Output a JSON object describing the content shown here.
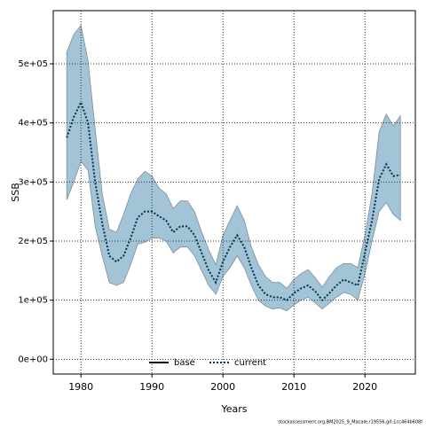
{
  "chart_data": {
    "type": "line",
    "x_label": "Years",
    "y_label": "SSB",
    "footer": "stockassessment.org,BM2025_9_Macale,r19556,git:1cc464b608f",
    "x": [
      1978,
      1979,
      1980,
      1981,
      1982,
      1983,
      1984,
      1985,
      1986,
      1987,
      1988,
      1989,
      1990,
      1991,
      1992,
      1993,
      1994,
      1995,
      1996,
      1997,
      1998,
      1999,
      2000,
      2001,
      2002,
      2003,
      2004,
      2005,
      2006,
      2007,
      2008,
      2009,
      2010,
      2011,
      2012,
      2013,
      2014,
      2015,
      2016,
      2017,
      2018,
      2019,
      2020,
      2021,
      2022,
      2023,
      2024,
      2025
    ],
    "band": {
      "color": "#a3c3d6",
      "lower": [
        270000,
        300000,
        335000,
        320000,
        225000,
        175000,
        130000,
        125000,
        130000,
        160000,
        195000,
        198000,
        205000,
        205000,
        200000,
        180000,
        190000,
        190000,
        175000,
        150000,
        125000,
        110000,
        140000,
        155000,
        175000,
        155000,
        125000,
        100000,
        90000,
        85000,
        87000,
        82000,
        92000,
        100000,
        105000,
        95000,
        85000,
        95000,
        105000,
        113000,
        110000,
        100000,
        145000,
        200000,
        250000,
        265000,
        245000,
        235000
      ],
      "upper": [
        520000,
        550000,
        565000,
        505000,
        390000,
        280000,
        220000,
        215000,
        245000,
        280000,
        305000,
        318000,
        310000,
        290000,
        280000,
        255000,
        268000,
        268000,
        250000,
        215000,
        185000,
        160000,
        210000,
        235000,
        260000,
        235000,
        190000,
        160000,
        140000,
        130000,
        130000,
        120000,
        135000,
        145000,
        152000,
        138000,
        122000,
        140000,
        155000,
        162000,
        162000,
        155000,
        210000,
        280000,
        385000,
        415000,
        395000,
        412000
      ]
    },
    "series": [
      {
        "name": "base",
        "color": "#000000",
        "style": "solid",
        "values": [
          null,
          null,
          null,
          null,
          null,
          null,
          null,
          null,
          null,
          null,
          null,
          null,
          null,
          null,
          null,
          null,
          null,
          null,
          null,
          null,
          null,
          null,
          null,
          null,
          null,
          null,
          null,
          null,
          null,
          null,
          null,
          null,
          null,
          null,
          null,
          null,
          null,
          null,
          null,
          null,
          null,
          null,
          null,
          null,
          null,
          null,
          null,
          null
        ]
      },
      {
        "name": "current",
        "color": "#00334d",
        "style": "dotted",
        "values": [
          375000,
          410000,
          435000,
          400000,
          300000,
          230000,
          175000,
          165000,
          175000,
          205000,
          240000,
          250000,
          250000,
          242000,
          235000,
          215000,
          225000,
          225000,
          210000,
          180000,
          150000,
          130000,
          165000,
          190000,
          210000,
          190000,
          155000,
          125000,
          110000,
          105000,
          105000,
          100000,
          112000,
          120000,
          125000,
          115000,
          100000,
          112000,
          125000,
          135000,
          130000,
          125000,
          180000,
          235000,
          305000,
          330000,
          310000,
          312000
        ]
      }
    ],
    "xlim": [
      1976.1,
      2027.1
    ],
    "xticks": [
      1980,
      1990,
      2000,
      2010,
      2020
    ],
    "ylim": [
      -25000,
      590000
    ],
    "yticks": [
      {
        "value": 0,
        "label": "0e+00"
      },
      {
        "value": 100000,
        "label": "1e+05"
      },
      {
        "value": 200000,
        "label": "2e+05"
      },
      {
        "value": 300000,
        "label": "3e+05"
      },
      {
        "value": 400000,
        "label": "4e+05"
      },
      {
        "value": 500000,
        "label": "5e+05"
      }
    ],
    "grid": true,
    "legend": "bottom"
  }
}
